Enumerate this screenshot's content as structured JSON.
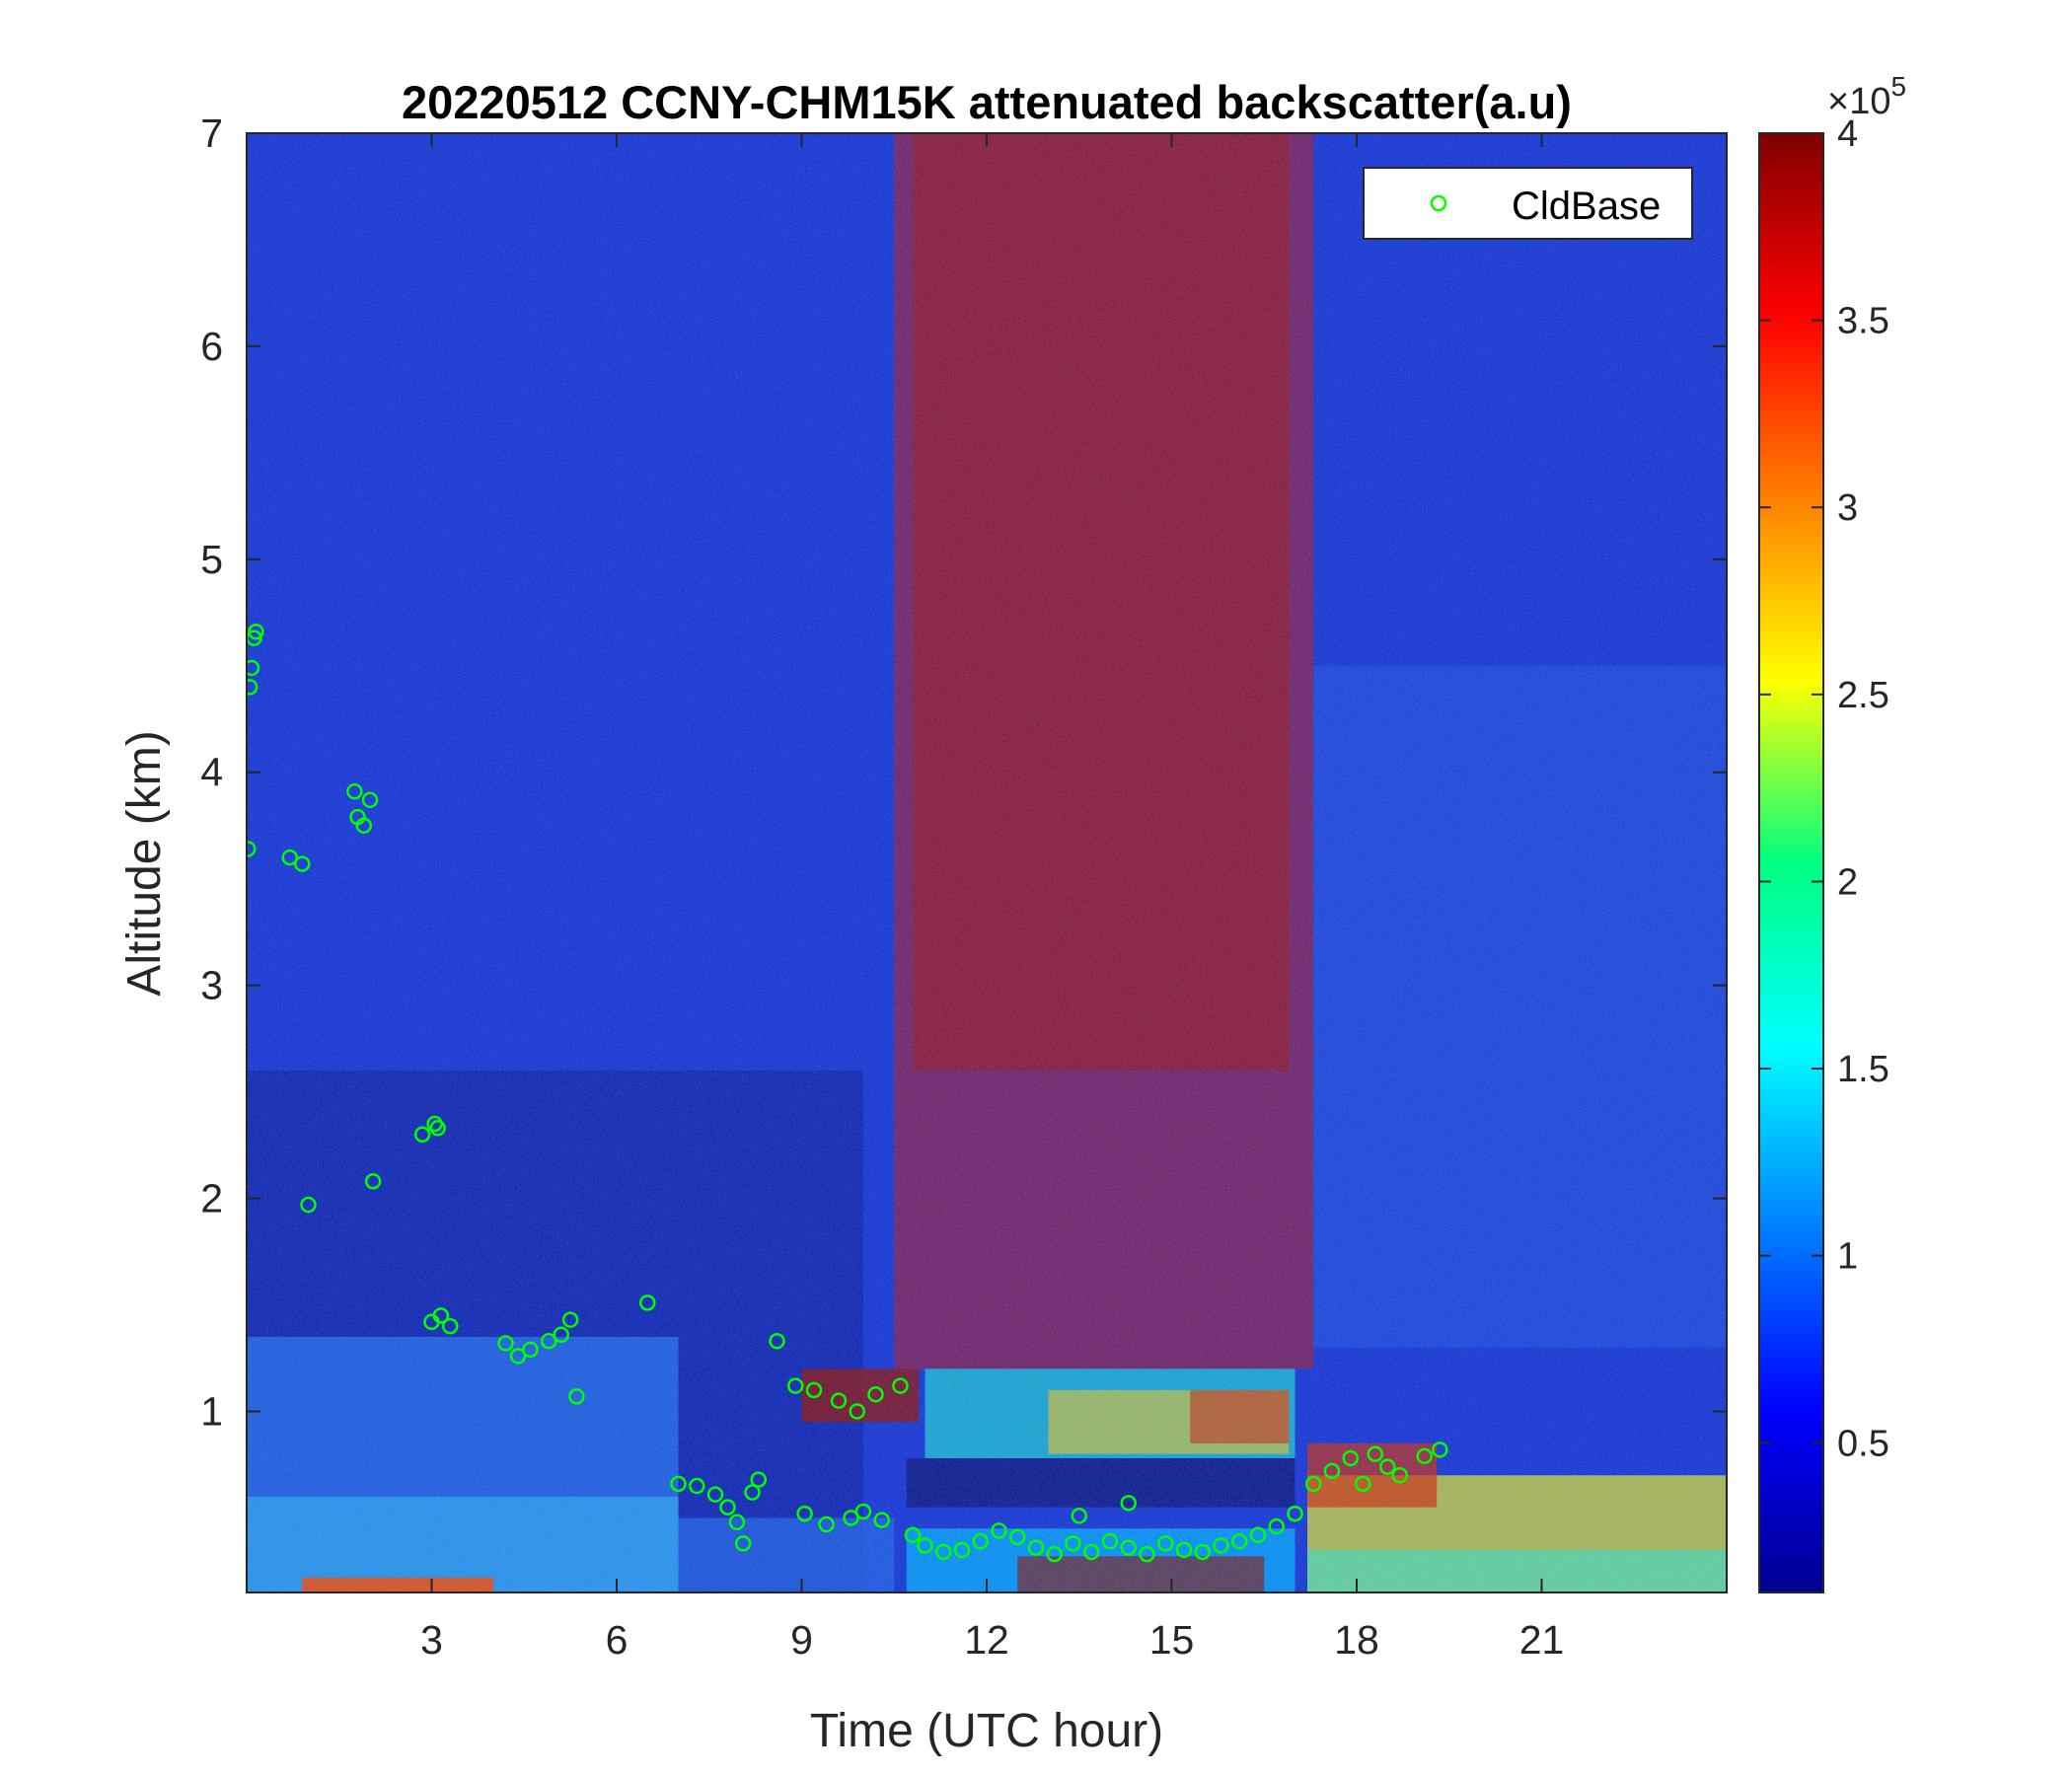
{
  "chart_data": {
    "type": "heatmap",
    "title": "20220512 CCNY-CHM15K attenuated backscatter(a.u)",
    "xlabel": "Time (UTC hour)",
    "ylabel": "Altitude (km)",
    "xlim": [
      0,
      24
    ],
    "ylim": [
      0.15,
      7
    ],
    "xticks": [
      "3",
      "6",
      "9",
      "12",
      "15",
      "18",
      "21"
    ],
    "yticks": [
      "1",
      "2",
      "3",
      "4",
      "5",
      "6",
      "7"
    ],
    "colormap": "jet",
    "colorbar": {
      "clim": [
        0.1,
        4
      ],
      "ticks": [
        "0.5",
        "1",
        "1.5",
        "2",
        "2.5",
        "3",
        "3.5",
        "4"
      ],
      "multiplier_base": "×10",
      "multiplier_exp": "5"
    },
    "legend": {
      "position": "top-right",
      "entries": [
        {
          "name": "CldBase",
          "marker": "circle",
          "color": "#00ff00"
        }
      ]
    },
    "series": [
      {
        "name": "CldBase",
        "points": [
          [
            0.02,
            3.64
          ],
          [
            0.05,
            4.4
          ],
          [
            0.08,
            4.49
          ],
          [
            0.12,
            4.63
          ],
          [
            0.15,
            4.66
          ],
          [
            0.7,
            3.6
          ],
          [
            0.9,
            3.57
          ],
          [
            1.0,
            1.97
          ],
          [
            1.75,
            3.91
          ],
          [
            1.8,
            3.79
          ],
          [
            1.9,
            3.75
          ],
          [
            2.0,
            3.87
          ],
          [
            2.05,
            2.08
          ],
          [
            2.85,
            2.3
          ],
          [
            3.05,
            2.35
          ],
          [
            3.1,
            2.33
          ],
          [
            3.0,
            1.42
          ],
          [
            3.15,
            1.45
          ],
          [
            3.3,
            1.4
          ],
          [
            4.2,
            1.32
          ],
          [
            4.4,
            1.26
          ],
          [
            4.6,
            1.29
          ],
          [
            4.9,
            1.33
          ],
          [
            5.1,
            1.36
          ],
          [
            5.25,
            1.43
          ],
          [
            5.35,
            1.07
          ],
          [
            6.5,
            1.51
          ],
          [
            7.0,
            0.66
          ],
          [
            7.3,
            0.65
          ],
          [
            7.6,
            0.61
          ],
          [
            7.8,
            0.55
          ],
          [
            7.95,
            0.48
          ],
          [
            8.05,
            0.38
          ],
          [
            8.2,
            0.62
          ],
          [
            8.3,
            0.68
          ],
          [
            8.6,
            1.33
          ],
          [
            8.9,
            1.12
          ],
          [
            9.05,
            0.52
          ],
          [
            9.2,
            1.1
          ],
          [
            9.4,
            0.47
          ],
          [
            9.6,
            1.05
          ],
          [
            9.8,
            0.5
          ],
          [
            9.9,
            1.0
          ],
          [
            10.0,
            0.53
          ],
          [
            10.2,
            1.08
          ],
          [
            10.3,
            0.49
          ],
          [
            10.6,
            1.12
          ],
          [
            10.8,
            0.42
          ],
          [
            11.0,
            0.37
          ],
          [
            11.3,
            0.34
          ],
          [
            11.6,
            0.35
          ],
          [
            11.9,
            0.39
          ],
          [
            12.2,
            0.44
          ],
          [
            12.5,
            0.41
          ],
          [
            12.8,
            0.36
          ],
          [
            13.1,
            0.33
          ],
          [
            13.4,
            0.38
          ],
          [
            13.7,
            0.34
          ],
          [
            14.0,
            0.39
          ],
          [
            14.3,
            0.36
          ],
          [
            14.6,
            0.33
          ],
          [
            14.9,
            0.38
          ],
          [
            15.2,
            0.35
          ],
          [
            15.5,
            0.34
          ],
          [
            15.8,
            0.37
          ],
          [
            16.1,
            0.39
          ],
          [
            16.4,
            0.42
          ],
          [
            16.7,
            0.46
          ],
          [
            17.0,
            0.52
          ],
          [
            17.3,
            0.66
          ],
          [
            17.6,
            0.72
          ],
          [
            17.9,
            0.78
          ],
          [
            18.1,
            0.66
          ],
          [
            18.3,
            0.8
          ],
          [
            18.5,
            0.74
          ],
          [
            18.7,
            0.7
          ],
          [
            19.1,
            0.79
          ],
          [
            19.35,
            0.82
          ],
          [
            13.5,
            0.51
          ],
          [
            14.3,
            0.57
          ]
        ]
      }
    ]
  }
}
